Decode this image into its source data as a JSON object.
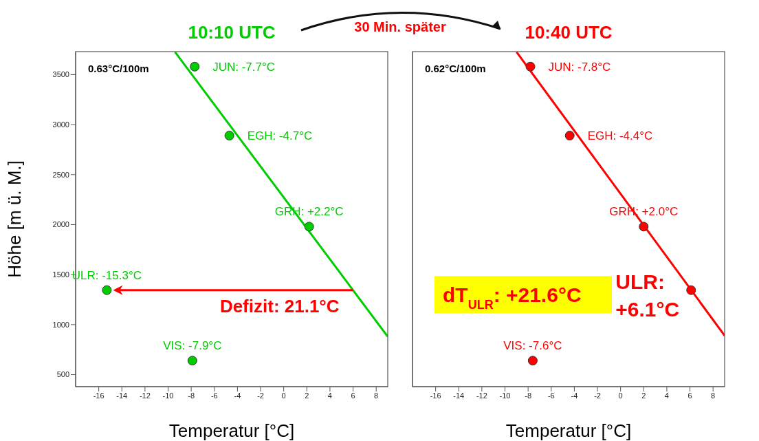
{
  "chart_data": [
    {
      "type": "scatter",
      "title": "10:10 UTC",
      "xlabel": "Temperatur [°C]",
      "ylabel": "Höhe [m ü. M.]",
      "xlim": [
        -18,
        9
      ],
      "ylim": [
        380,
        3730
      ],
      "xticks": [
        -16,
        -14,
        -12,
        -10,
        -8,
        -6,
        -4,
        -2,
        0,
        2,
        4,
        6,
        8
      ],
      "yticks": [
        500,
        1000,
        1500,
        2000,
        2500,
        3000,
        3500
      ],
      "grid": false,
      "legend": false,
      "series": [
        {
          "color": "#00cc00",
          "marker": "circle",
          "x": [
            -7.7,
            -4.7,
            2.2,
            -15.3,
            -7.9
          ],
          "values": [
            3580,
            2890,
            1980,
            1345,
            640
          ]
        },
        {
          "type": "line",
          "color": "#00cc00",
          "marker": "none",
          "line_style": "solid",
          "x": [
            -9.4,
            9
          ],
          "values": [
            3726,
            880
          ]
        }
      ],
      "annotations": [
        "0.63°C/100m",
        {
          "text": "Defizit: 21.1°C",
          "x": 6,
          "y": 1345
        },
        {
          "text": "JUN: -7.7°C",
          "x": -7.7,
          "y": 3580
        },
        {
          "text": "EGH: -4.7°C",
          "x": -4.7,
          "y": 2890
        },
        {
          "text": "GRH: +2.2°C",
          "x": 2.2,
          "y": 1980
        },
        {
          "text": "ULR: -15.3°C",
          "x": -15.3,
          "y": 1345
        },
        {
          "text": "VIS: -7.9°C",
          "x": -7.9,
          "y": 640
        }
      ]
    },
    {
      "type": "scatter",
      "title": "10:40 UTC",
      "xlabel": "Temperatur [°C]",
      "xlim": [
        -18,
        9
      ],
      "ylim": [
        380,
        3730
      ],
      "xticks": [
        -16,
        -14,
        -12,
        -10,
        -8,
        -6,
        -4,
        -2,
        0,
        2,
        4,
        6,
        8
      ],
      "yticks": [
        500,
        1000,
        1500,
        2000,
        2500,
        3000,
        3500
      ],
      "tick_labels": "x",
      "grid": false,
      "legend": false,
      "series": [
        {
          "color": "#ff0000",
          "marker": "circle",
          "x": [
            -7.8,
            -4.4,
            2.0,
            6.1,
            -7.6
          ],
          "values": [
            3580,
            2890,
            1980,
            1345,
            640
          ]
        },
        {
          "type": "line",
          "color": "#ff0000",
          "marker": "none",
          "line_style": "solid",
          "x": [
            -9.0,
            9
          ],
          "values": [
            3726,
            890
          ]
        }
      ],
      "annotations": [
        "0.62°C/100m",
        "dT$_{ULR}$: +21.6°C",
        "30 Min. später",
        {
          "text": "ULR: +6.1°C",
          "x": 6.1,
          "y": 1345
        },
        {
          "text": "JUN: -7.8°C",
          "x": -7.8,
          "y": 3580
        },
        {
          "text": "EGH: -4.4°C",
          "x": -4.4,
          "y": 2890
        },
        {
          "text": "GRH: +2.0°C",
          "x": 2.0,
          "y": 1980
        },
        {
          "text": "VIS: -7.6°C",
          "x": -7.6,
          "y": 640
        }
      ]
    }
  ]
}
